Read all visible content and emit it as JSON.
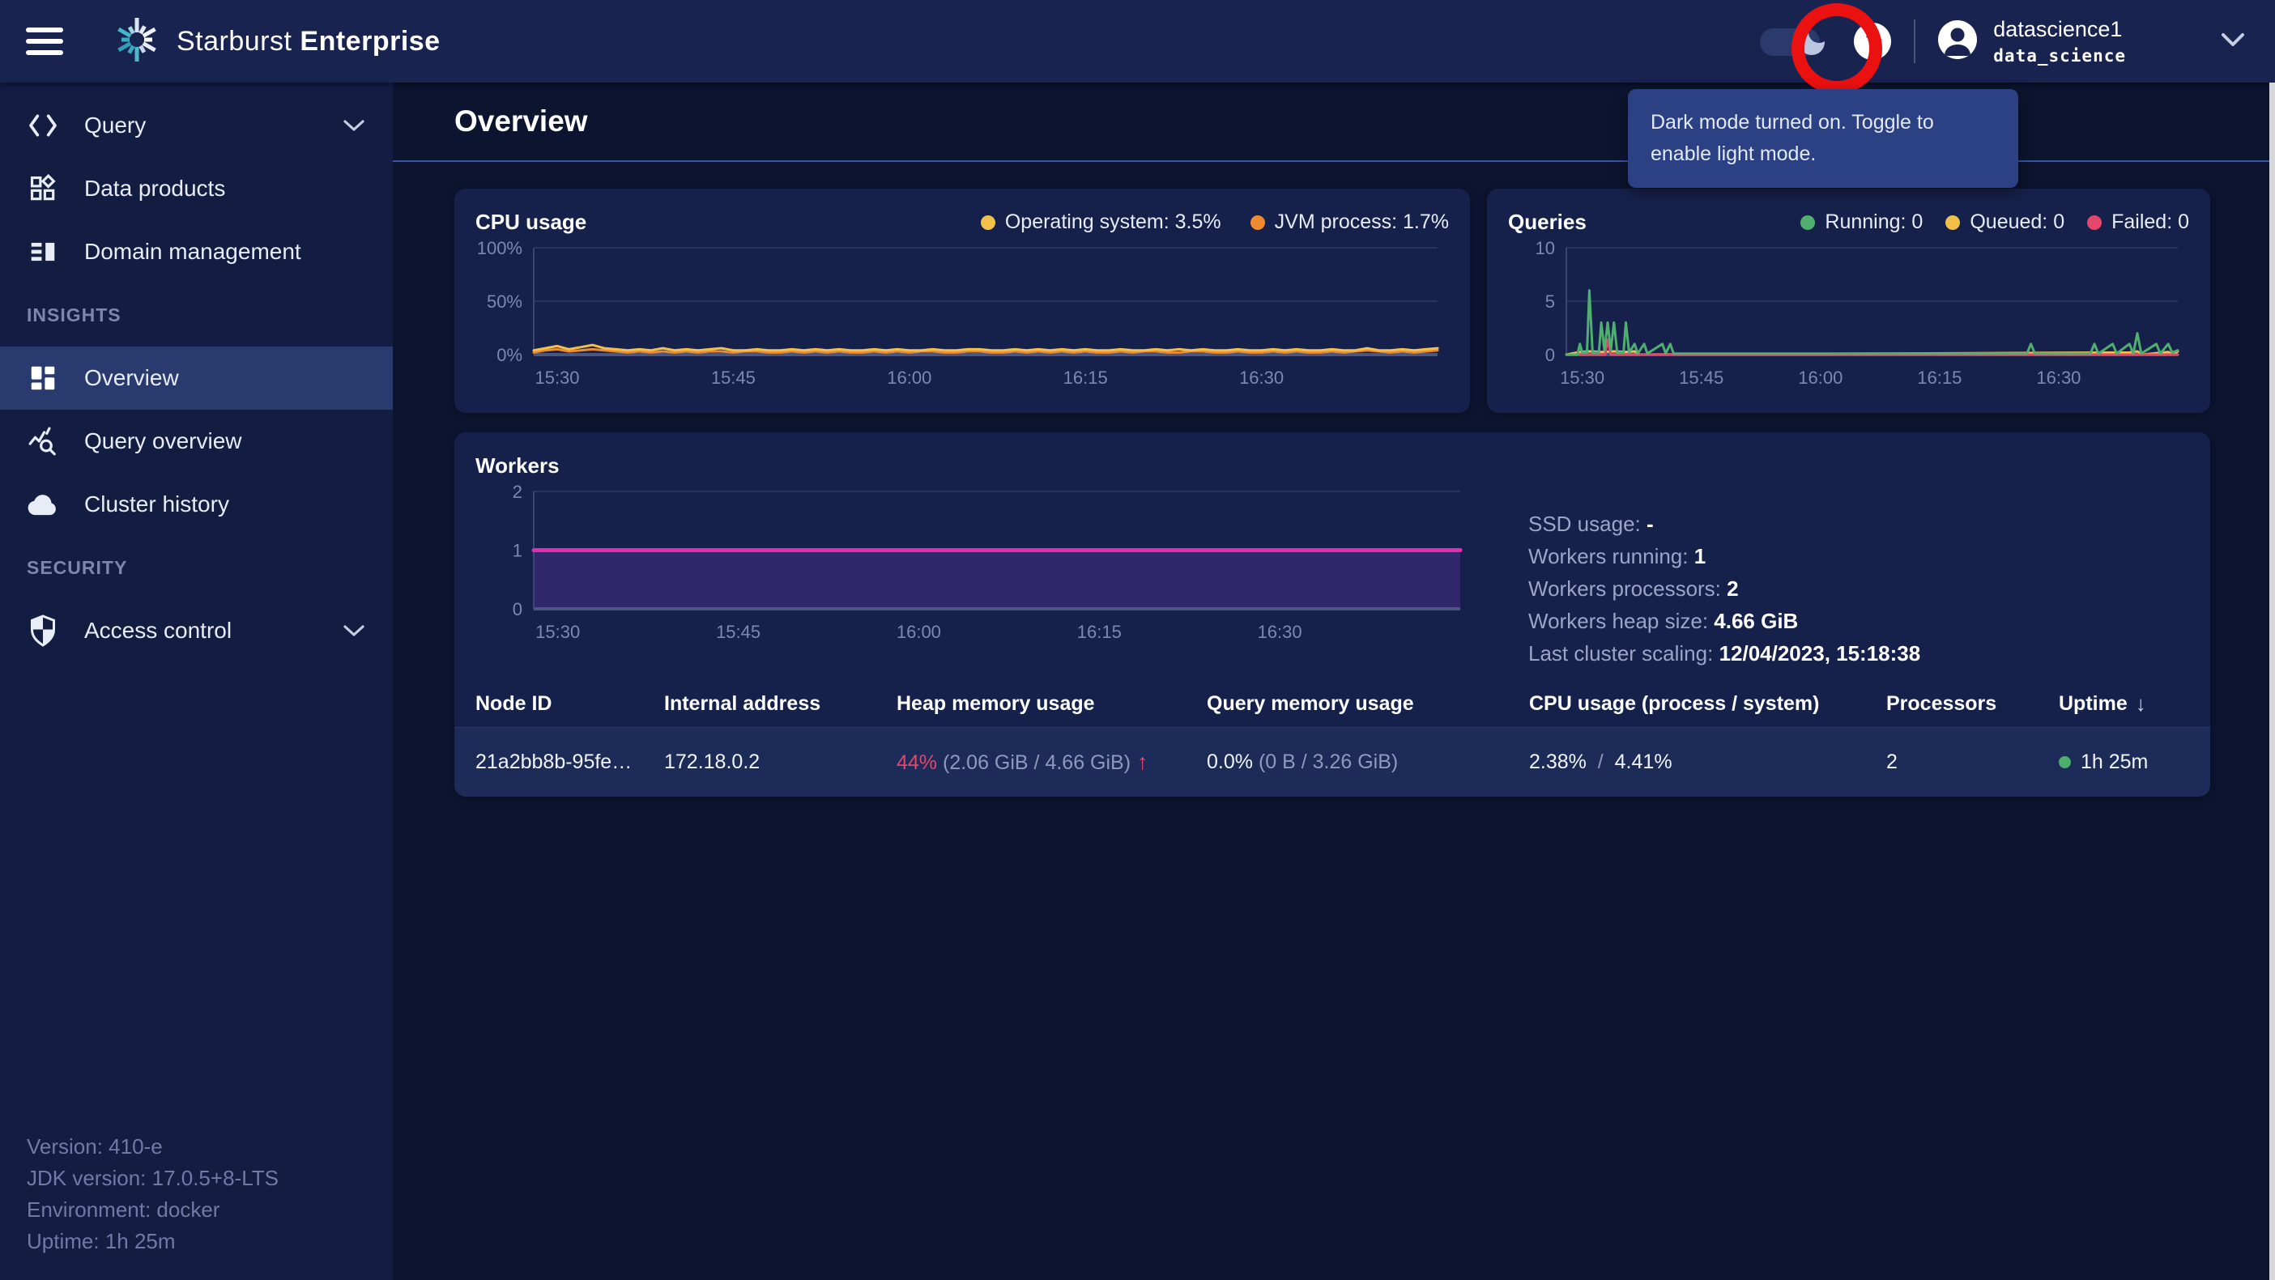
{
  "colors": {
    "annotation_red": "#EC1111",
    "accent_line": "#3A55A3",
    "uptime_dot": "#4CAF6E",
    "workers_line": "#E32DB1"
  },
  "topbar": {
    "brand_light": "Starburst",
    "brand_bold": "Enterprise",
    "help_glyph": "?",
    "user_name": "datascience1",
    "user_role": "data_science"
  },
  "tooltip": {
    "text": "Dark mode turned on. Toggle to enable light mode."
  },
  "sidebar": {
    "groups": [
      {
        "label": "",
        "items": [
          {
            "label": "Query"
          },
          {
            "label": "Data products"
          },
          {
            "label": "Domain management"
          }
        ]
      },
      {
        "label": "INSIGHTS",
        "items": [
          {
            "label": "Overview"
          },
          {
            "label": "Query overview"
          },
          {
            "label": "Cluster history"
          }
        ]
      },
      {
        "label": "SECURITY",
        "items": [
          {
            "label": "Access control"
          }
        ]
      }
    ],
    "footer": [
      "Version: 410-e",
      "JDK version: 17.0.5+8-LTS",
      "Environment: docker",
      "Uptime: 1h 25m"
    ]
  },
  "main": {
    "title": "Overview"
  },
  "workers": {
    "stats": [
      {
        "label": "SSD usage: ",
        "value": "-"
      },
      {
        "label": "Workers running: ",
        "value": "1"
      },
      {
        "label": "Workers processors: ",
        "value": "2"
      },
      {
        "label": "Workers heap size: ",
        "value": "4.66 GiB"
      },
      {
        "label": "Last cluster scaling: ",
        "value": "12/04/2023, 15:18:38"
      }
    ]
  },
  "table": {
    "columns": [
      "Node ID",
      "Internal address",
      "Heap memory usage",
      "Query memory usage",
      "CPU usage (process / system)",
      "Processors",
      "Uptime"
    ],
    "sort_icon": "↓",
    "rows": [
      {
        "node_id": "21a2bb8b-95fe…",
        "internal_address": "172.18.0.2",
        "heap_pct": "44%",
        "heap_detail": "(2.06 GiB / 4.66 GiB)",
        "heap_trend_icon": "↑",
        "query_pct": "0.0%",
        "query_detail": "(0 B / 3.26 GiB)",
        "cpu_process": "2.38%",
        "cpu_divider": "/",
        "cpu_system": "4.41%",
        "processors": "2",
        "uptime": "1h 25m"
      }
    ]
  },
  "chart_data": [
    {
      "id": "cpu",
      "type": "line",
      "title": "CPU usage",
      "legend": [
        {
          "label": "Operating system: 3.5%",
          "color": "#F2C14B"
        },
        {
          "label": "JVM process: 1.7%",
          "color": "#F08A2E"
        }
      ],
      "x_range": [
        0,
        77
      ],
      "x_ticks": [
        {
          "m": 2,
          "label": "15:30"
        },
        {
          "m": 17,
          "label": "15:45"
        },
        {
          "m": 32,
          "label": "16:00"
        },
        {
          "m": 47,
          "label": "16:15"
        },
        {
          "m": 62,
          "label": "16:30"
        }
      ],
      "y": {
        "min": 0,
        "max": 100,
        "ticks": [
          0,
          50,
          100
        ],
        "labels": [
          "0%",
          "50%",
          "100%"
        ]
      },
      "series": [
        {
          "name": "JVM process",
          "color": "#F08A2E",
          "width": 3,
          "values": [
            2,
            4,
            5,
            3,
            4,
            5,
            4,
            3,
            2,
            3,
            2,
            3,
            2,
            3,
            2,
            3,
            3,
            2,
            3,
            3,
            2,
            2,
            3,
            2,
            3,
            2,
            3,
            2,
            2,
            3,
            2,
            3,
            2,
            3,
            3,
            2,
            2,
            3,
            3,
            2,
            2,
            3,
            2,
            3,
            2,
            3,
            2,
            3,
            2,
            2,
            3,
            2,
            3,
            3,
            2,
            2,
            3,
            3,
            2,
            2,
            3,
            2,
            2,
            3,
            2,
            3,
            2,
            2,
            3,
            2,
            3,
            4,
            3,
            2,
            3,
            2,
            3,
            4
          ]
        },
        {
          "name": "Operating system",
          "color": "#F2C14B",
          "width": 3,
          "values": [
            4,
            6,
            8,
            5,
            7,
            9,
            6,
            5,
            4,
            5,
            4,
            6,
            4,
            5,
            4,
            5,
            6,
            4,
            4,
            5,
            4,
            4,
            5,
            4,
            5,
            4,
            5,
            4,
            4,
            5,
            4,
            5,
            4,
            4,
            5,
            4,
            4,
            5,
            5,
            4,
            4,
            5,
            4,
            5,
            4,
            5,
            4,
            5,
            4,
            4,
            5,
            4,
            4,
            5,
            4,
            5,
            4,
            5,
            4,
            4,
            5,
            4,
            4,
            5,
            4,
            5,
            4,
            4,
            5,
            4,
            4,
            6,
            4,
            4,
            5,
            4,
            5,
            6
          ]
        }
      ]
    },
    {
      "id": "queries",
      "type": "line",
      "title": "Queries",
      "legend": [
        {
          "label": "Running: 0",
          "color": "#4FAF6F"
        },
        {
          "label": "Queued: 0",
          "color": "#F0C04A"
        },
        {
          "label": "Failed: 0",
          "color": "#E5476B"
        }
      ],
      "x_range": [
        0,
        77
      ],
      "x_ticks": [
        {
          "m": 2,
          "label": "15:30"
        },
        {
          "m": 17,
          "label": "15:45"
        },
        {
          "m": 32,
          "label": "16:00"
        },
        {
          "m": 47,
          "label": "16:15"
        },
        {
          "m": 62,
          "label": "16:30"
        }
      ],
      "y": {
        "min": 0,
        "max": 10,
        "ticks": [
          0,
          5,
          10
        ],
        "labels": [
          "0",
          "5",
          "10"
        ]
      },
      "series": [
        {
          "name": "Queued",
          "color": "#F0C04A",
          "width": 3,
          "points": [
            [
              0,
              0
            ],
            [
              1.7,
              0.25
            ],
            [
              2.9,
              0.3
            ],
            [
              4.4,
              0.25
            ],
            [
              6,
              0.3
            ],
            [
              7.5,
              0.25
            ],
            [
              8.6,
              0.3
            ],
            [
              9.2,
              0
            ],
            [
              70.9,
              0.2
            ],
            [
              71.9,
              0.3
            ],
            [
              72.5,
              0
            ],
            [
              75.8,
              0.25
            ],
            [
              76.4,
              0
            ],
            [
              77,
              0.3
            ]
          ]
        },
        {
          "name": "Failed",
          "color": "#E5476B",
          "width": 3,
          "points": [
            [
              0,
              0
            ],
            [
              4.9,
              0
            ],
            [
              5.2,
              1.4
            ],
            [
              5.6,
              0
            ],
            [
              77,
              0
            ]
          ]
        },
        {
          "name": "Running",
          "color": "#4FAF6F",
          "width": 3,
          "points": [
            [
              0,
              0
            ],
            [
              1.4,
              0
            ],
            [
              1.7,
              1
            ],
            [
              2.0,
              0.2
            ],
            [
              2.6,
              0.2
            ],
            [
              2.9,
              6
            ],
            [
              3.3,
              0.2
            ],
            [
              4.1,
              0.2
            ],
            [
              4.4,
              3
            ],
            [
              4.8,
              0.4
            ],
            [
              5.2,
              3
            ],
            [
              5.6,
              0.4
            ],
            [
              6.0,
              3
            ],
            [
              6.4,
              0.2
            ],
            [
              7.2,
              0.2
            ],
            [
              7.5,
              3
            ],
            [
              7.9,
              0.2
            ],
            [
              8.6,
              1
            ],
            [
              9.0,
              0.1
            ],
            [
              9.8,
              1
            ],
            [
              10.2,
              0.1
            ],
            [
              12.1,
              1
            ],
            [
              12.5,
              0.1
            ],
            [
              13.1,
              1
            ],
            [
              13.5,
              0.1
            ],
            [
              58,
              0.1
            ],
            [
              58.5,
              1
            ],
            [
              59,
              0.1
            ],
            [
              66,
              0.1
            ],
            [
              66.5,
              1
            ],
            [
              67,
              0.1
            ],
            [
              68.8,
              1
            ],
            [
              69.3,
              0.1
            ],
            [
              70.9,
              1
            ],
            [
              71.4,
              0.1
            ],
            [
              71.9,
              2
            ],
            [
              72.4,
              0.1
            ],
            [
              74.3,
              1
            ],
            [
              74.8,
              0.1
            ],
            [
              75.8,
              1
            ],
            [
              76.3,
              0.2
            ],
            [
              77,
              0.4
            ]
          ]
        }
      ]
    },
    {
      "id": "workers",
      "type": "area",
      "title": "Workers",
      "legend": [],
      "x_range": [
        0,
        77
      ],
      "x_ticks": [
        {
          "m": 2,
          "label": "15:30"
        },
        {
          "m": 17,
          "label": "15:45"
        },
        {
          "m": 32,
          "label": "16:00"
        },
        {
          "m": 47,
          "label": "16:15"
        },
        {
          "m": 62,
          "label": "16:30"
        }
      ],
      "y": {
        "min": 0,
        "max": 2,
        "ticks": [
          0,
          1,
          2
        ],
        "labels": [
          "0",
          "1",
          "2"
        ]
      },
      "series": [
        {
          "name": "Workers",
          "color": "#E32DB1",
          "width": 5,
          "fill": "rgba(120,60,190,0.28)",
          "values": [
            1,
            1
          ]
        }
      ]
    }
  ]
}
